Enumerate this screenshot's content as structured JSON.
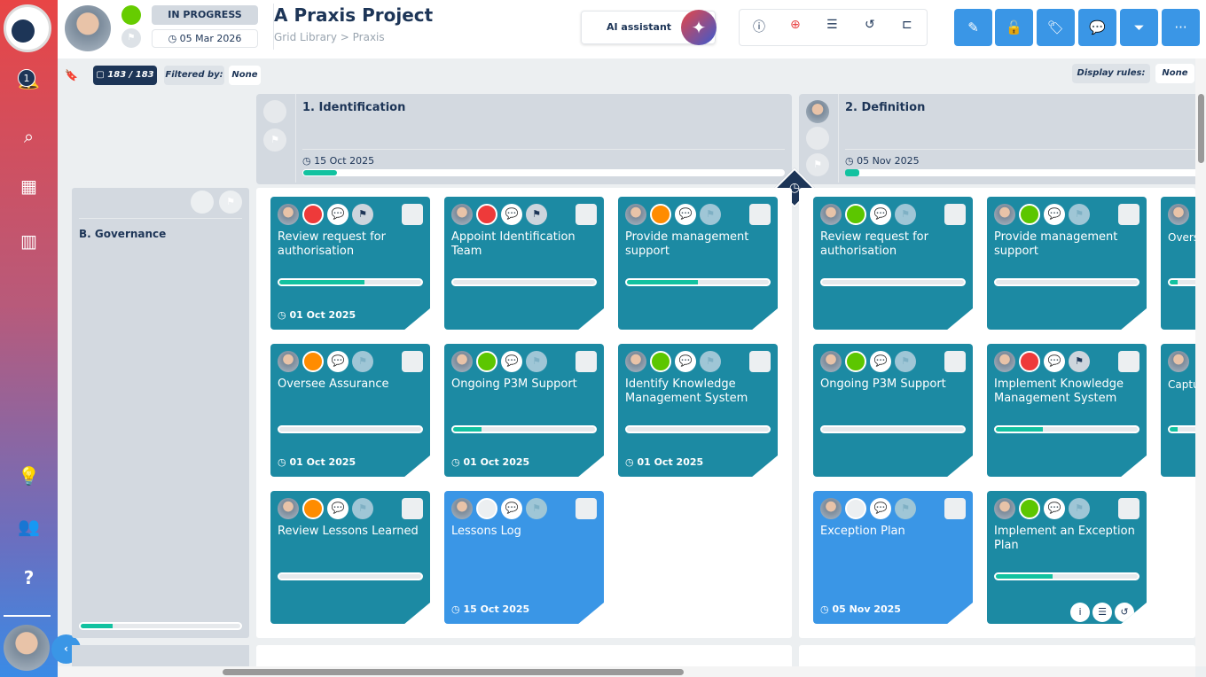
{
  "sidebar": {
    "notification_count": "1",
    "items": [
      "bell",
      "search",
      "grid",
      "chart",
      "lightbulb",
      "users",
      "help"
    ]
  },
  "header": {
    "status": "IN PROGRESS",
    "date": "05 Mar 2026",
    "title": "A Praxis Project",
    "breadcrumb": "Grid Library > Praxis",
    "ai_label": "AI assistant",
    "status_color": "#66cc00"
  },
  "filterbar": {
    "count": "183 / 183",
    "filtered_label": "Filtered by:",
    "filtered_value": "None",
    "rules_label": "Display rules:",
    "rules_value": "None"
  },
  "phases": [
    {
      "title": "1. Identification",
      "date": "15 Oct 2025",
      "progress": 7
    },
    {
      "title": "2. Definition",
      "date": "05 Nov 2025",
      "progress": 4
    }
  ],
  "lanes": [
    {
      "title": "B. Governance",
      "progress": 20
    }
  ],
  "colors": {
    "red": "#ee3a3a",
    "orange": "#ff8c00",
    "green": "#5cc600",
    "white": "#eceff1"
  },
  "cards": [
    {
      "title": "Review request for authorisation",
      "status": "red",
      "flag": "dark",
      "progress": 60,
      "date": "01 Oct 2025"
    },
    {
      "title": "Appoint Identification Team",
      "status": "red",
      "flag": "dark",
      "progress": 0
    },
    {
      "title": "Provide management support",
      "status": "orange",
      "progress": 50
    },
    {
      "title": "Review request for authorisation",
      "status": "green",
      "progress": 0
    },
    {
      "title": "Provide management support",
      "status": "green",
      "progress": 0
    },
    {
      "title": "Overs",
      "status": "green",
      "progress": 30
    },
    {
      "title": "Oversee Assurance",
      "status": "orange",
      "progress": 0,
      "date": "01 Oct 2025"
    },
    {
      "title": "Ongoing P3M Support",
      "status": "green",
      "progress": 20,
      "date": "01 Oct 2025"
    },
    {
      "title": "Identify Knowledge Management System",
      "status": "green",
      "progress": 0,
      "date": "01 Oct 2025"
    },
    {
      "title": "Ongoing P3M Support",
      "status": "green",
      "progress": 0
    },
    {
      "title": "Implement Knowledge Management System",
      "status": "red",
      "flag": "dark",
      "progress": 33
    },
    {
      "title": "Captu",
      "status": "green",
      "progress": 30
    },
    {
      "title": "Review Lessons Learned",
      "status": "orange",
      "progress": 0
    },
    {
      "title": "Lessons Log",
      "status": "white",
      "blue": true,
      "date": "15 Oct 2025"
    },
    null,
    {
      "title": "Exception Plan",
      "status": "white",
      "blue": true,
      "date": "05 Nov 2025"
    },
    {
      "title": "Implement an Exception Plan",
      "status": "green",
      "progress": 40,
      "actions": true
    },
    null
  ]
}
